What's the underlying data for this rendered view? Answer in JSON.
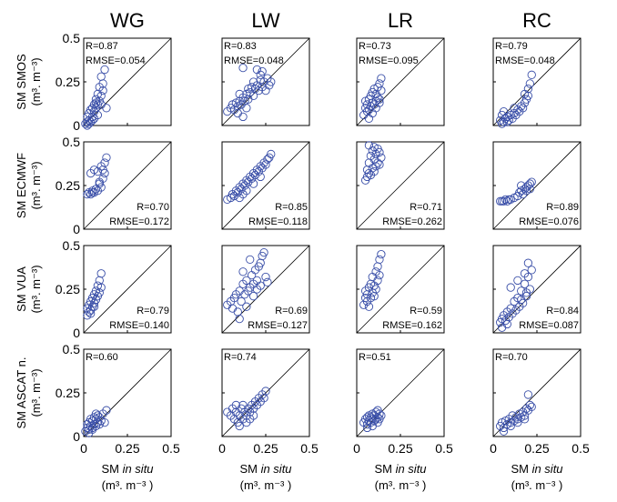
{
  "colors": {
    "marker": "#3a4fa8",
    "frame": "#000000",
    "background": "#ffffff"
  },
  "x_axis_label": {
    "prefix": "SM ",
    "italic": "in situ",
    "units": "(m³. m⁻³ )"
  },
  "chart_data": [
    {
      "type": "scatter",
      "column": "WG",
      "row": 0,
      "ylabel": "SM SMOS",
      "xlim": [
        0,
        0.5
      ],
      "ylim": [
        0,
        0.5
      ],
      "stats": [
        "R=0.87",
        "RMSE=0.054"
      ],
      "stats_pos": "top-left",
      "x": [
        0.01,
        0.02,
        0.02,
        0.03,
        0.03,
        0.04,
        0.04,
        0.05,
        0.05,
        0.06,
        0.06,
        0.07,
        0.07,
        0.08,
        0.08,
        0.09,
        0.09,
        0.1,
        0.1,
        0.11,
        0.12,
        0.13,
        0.02,
        0.03,
        0.05,
        0.06,
        0.08,
        0.1,
        0.11,
        0.07
      ],
      "y": [
        0.01,
        0.02,
        0.05,
        0.03,
        0.07,
        0.02,
        0.09,
        0.05,
        0.1,
        0.08,
        0.12,
        0.1,
        0.15,
        0.12,
        0.18,
        0.14,
        0.22,
        0.17,
        0.28,
        0.2,
        0.32,
        0.1,
        0.0,
        0.01,
        0.03,
        0.04,
        0.06,
        0.12,
        0.24,
        0.13
      ]
    },
    {
      "type": "scatter",
      "column": "LW",
      "row": 0,
      "ylabel": "SM SMOS",
      "xlim": [
        0,
        0.5
      ],
      "ylim": [
        0,
        0.5
      ],
      "stats": [
        "R=0.83",
        "RMSE=0.048"
      ],
      "stats_pos": "top-left",
      "x": [
        0.03,
        0.05,
        0.06,
        0.07,
        0.08,
        0.09,
        0.1,
        0.1,
        0.11,
        0.12,
        0.12,
        0.13,
        0.14,
        0.15,
        0.15,
        0.16,
        0.17,
        0.18,
        0.18,
        0.19,
        0.2,
        0.21,
        0.22,
        0.22,
        0.23,
        0.24,
        0.25,
        0.26,
        0.27,
        0.28,
        0.12,
        0.09,
        0.14,
        0.2,
        0.23
      ],
      "y": [
        0.08,
        0.1,
        0.12,
        0.09,
        0.13,
        0.11,
        0.14,
        0.18,
        0.12,
        0.16,
        0.33,
        0.14,
        0.18,
        0.15,
        0.21,
        0.19,
        0.22,
        0.17,
        0.25,
        0.21,
        0.23,
        0.2,
        0.26,
        0.29,
        0.22,
        0.25,
        0.2,
        0.27,
        0.23,
        0.25,
        0.05,
        0.07,
        0.1,
        0.32,
        0.31
      ]
    },
    {
      "type": "scatter",
      "column": "LR",
      "row": 0,
      "ylabel": "SM SMOS",
      "xlim": [
        0,
        0.5
      ],
      "ylim": [
        0,
        0.5
      ],
      "stats": [
        "R=0.73",
        "RMSE=0.095"
      ],
      "stats_pos": "top-left",
      "x": [
        0.04,
        0.05,
        0.05,
        0.06,
        0.06,
        0.07,
        0.07,
        0.08,
        0.08,
        0.09,
        0.09,
        0.1,
        0.1,
        0.11,
        0.11,
        0.12,
        0.12,
        0.13,
        0.13,
        0.14,
        0.14,
        0.07,
        0.09,
        0.11,
        0.13
      ],
      "y": [
        0.06,
        0.1,
        0.14,
        0.08,
        0.12,
        0.09,
        0.15,
        0.11,
        0.17,
        0.13,
        0.19,
        0.12,
        0.21,
        0.14,
        0.18,
        0.16,
        0.22,
        0.15,
        0.24,
        0.2,
        0.27,
        0.04,
        0.07,
        0.1,
        0.13
      ]
    },
    {
      "type": "scatter",
      "column": "RC",
      "row": 0,
      "ylabel": "SM SMOS",
      "xlim": [
        0,
        0.5
      ],
      "ylim": [
        0,
        0.5
      ],
      "stats": [
        "R=0.79",
        "RMSE=0.048"
      ],
      "stats_pos": "top-left",
      "x": [
        0.04,
        0.05,
        0.06,
        0.06,
        0.07,
        0.08,
        0.09,
        0.1,
        0.11,
        0.12,
        0.13,
        0.14,
        0.15,
        0.16,
        0.17,
        0.18,
        0.19,
        0.2,
        0.2,
        0.21,
        0.22,
        0.05,
        0.08,
        0.12,
        0.18
      ],
      "y": [
        0.03,
        0.06,
        0.02,
        0.08,
        0.04,
        0.05,
        0.03,
        0.06,
        0.04,
        0.07,
        0.06,
        0.09,
        0.08,
        0.11,
        0.1,
        0.13,
        0.15,
        0.17,
        0.21,
        0.24,
        0.29,
        0.01,
        0.02,
        0.1,
        0.18
      ]
    },
    {
      "type": "scatter",
      "column": "WG",
      "row": 1,
      "ylabel": "SM ECMWF",
      "xlim": [
        0,
        0.5
      ],
      "ylim": [
        0,
        0.5
      ],
      "stats": [
        "R=0.70",
        "RMSE=0.172"
      ],
      "stats_pos": "bottom-right",
      "x": [
        0.02,
        0.03,
        0.04,
        0.05,
        0.06,
        0.07,
        0.08,
        0.09,
        0.1,
        0.11,
        0.12,
        0.04,
        0.06,
        0.08,
        0.1,
        0.12,
        0.13,
        0.05,
        0.09,
        0.11
      ],
      "y": [
        0.2,
        0.21,
        0.2,
        0.22,
        0.21,
        0.23,
        0.22,
        0.26,
        0.24,
        0.29,
        0.32,
        0.32,
        0.34,
        0.33,
        0.36,
        0.38,
        0.41,
        0.21,
        0.27,
        0.34
      ]
    },
    {
      "type": "scatter",
      "column": "LW",
      "row": 1,
      "ylabel": "SM ECMWF",
      "xlim": [
        0,
        0.5
      ],
      "ylim": [
        0,
        0.5
      ],
      "stats": [
        "R=0.85",
        "RMSE=0.118"
      ],
      "stats_pos": "bottom-right",
      "x": [
        0.03,
        0.05,
        0.06,
        0.07,
        0.08,
        0.09,
        0.1,
        0.11,
        0.12,
        0.13,
        0.14,
        0.15,
        0.16,
        0.17,
        0.18,
        0.19,
        0.2,
        0.21,
        0.22,
        0.23,
        0.24,
        0.25,
        0.26,
        0.27,
        0.28,
        0.1,
        0.14,
        0.18,
        0.22,
        0.12
      ],
      "y": [
        0.17,
        0.18,
        0.2,
        0.19,
        0.22,
        0.21,
        0.24,
        0.23,
        0.26,
        0.25,
        0.28,
        0.27,
        0.3,
        0.29,
        0.32,
        0.31,
        0.34,
        0.33,
        0.36,
        0.35,
        0.38,
        0.37,
        0.4,
        0.41,
        0.43,
        0.18,
        0.22,
        0.26,
        0.3,
        0.2
      ]
    },
    {
      "type": "scatter",
      "column": "LR",
      "row": 1,
      "ylabel": "SM ECMWF",
      "xlim": [
        0,
        0.5
      ],
      "ylim": [
        0,
        0.5
      ],
      "stats": [
        "R=0.71",
        "RMSE=0.262"
      ],
      "stats_pos": "bottom-right",
      "x": [
        0.05,
        0.06,
        0.06,
        0.07,
        0.07,
        0.08,
        0.08,
        0.09,
        0.09,
        0.1,
        0.1,
        0.11,
        0.11,
        0.12,
        0.12,
        0.13,
        0.13,
        0.14,
        0.07,
        0.1
      ],
      "y": [
        0.28,
        0.3,
        0.34,
        0.32,
        0.38,
        0.31,
        0.42,
        0.35,
        0.45,
        0.33,
        0.4,
        0.36,
        0.43,
        0.38,
        0.46,
        0.37,
        0.44,
        0.41,
        0.48,
        0.47
      ]
    },
    {
      "type": "scatter",
      "column": "RC",
      "row": 1,
      "ylabel": "SM ECMWF",
      "xlim": [
        0,
        0.5
      ],
      "ylim": [
        0,
        0.5
      ],
      "stats": [
        "R=0.89",
        "RMSE=0.076"
      ],
      "stats_pos": "bottom-right",
      "x": [
        0.04,
        0.05,
        0.06,
        0.07,
        0.08,
        0.09,
        0.1,
        0.12,
        0.14,
        0.15,
        0.16,
        0.17,
        0.18,
        0.19,
        0.2,
        0.21,
        0.22,
        0.16,
        0.19,
        0.21
      ],
      "y": [
        0.16,
        0.16,
        0.16,
        0.17,
        0.16,
        0.17,
        0.17,
        0.18,
        0.19,
        0.21,
        0.22,
        0.2,
        0.23,
        0.24,
        0.25,
        0.26,
        0.27,
        0.25,
        0.22,
        0.23
      ]
    },
    {
      "type": "scatter",
      "column": "WG",
      "row": 2,
      "ylabel": "SM VUA",
      "xlim": [
        0,
        0.5
      ],
      "ylim": [
        0,
        0.5
      ],
      "stats": [
        "R=0.79",
        "RMSE=0.140"
      ],
      "stats_pos": "bottom-right",
      "x": [
        0.02,
        0.02,
        0.03,
        0.03,
        0.04,
        0.04,
        0.05,
        0.05,
        0.06,
        0.06,
        0.07,
        0.07,
        0.08,
        0.08,
        0.09,
        0.09,
        0.1,
        0.1,
        0.04,
        0.06
      ],
      "y": [
        0.1,
        0.14,
        0.12,
        0.16,
        0.13,
        0.18,
        0.15,
        0.2,
        0.17,
        0.22,
        0.19,
        0.24,
        0.21,
        0.27,
        0.23,
        0.3,
        0.26,
        0.34,
        0.11,
        0.15
      ]
    },
    {
      "type": "scatter",
      "column": "LW",
      "row": 2,
      "ylabel": "SM VUA",
      "xlim": [
        0,
        0.5
      ],
      "ylim": [
        0,
        0.5
      ],
      "stats": [
        "R=0.69",
        "RMSE=0.127"
      ],
      "stats_pos": "bottom-right",
      "x": [
        0.03,
        0.05,
        0.06,
        0.07,
        0.08,
        0.09,
        0.1,
        0.11,
        0.12,
        0.13,
        0.14,
        0.15,
        0.16,
        0.17,
        0.18,
        0.19,
        0.2,
        0.21,
        0.22,
        0.23,
        0.24,
        0.25,
        0.26,
        0.1,
        0.14,
        0.18,
        0.22,
        0.12,
        0.16,
        0.2
      ],
      "y": [
        0.16,
        0.18,
        0.14,
        0.2,
        0.22,
        0.12,
        0.24,
        0.18,
        0.28,
        0.22,
        0.3,
        0.24,
        0.26,
        0.33,
        0.28,
        0.36,
        0.3,
        0.38,
        0.4,
        0.44,
        0.46,
        0.32,
        0.29,
        0.08,
        0.15,
        0.21,
        0.27,
        0.35,
        0.42,
        0.25
      ]
    },
    {
      "type": "scatter",
      "column": "LR",
      "row": 2,
      "ylabel": "SM VUA",
      "xlim": [
        0,
        0.5
      ],
      "ylim": [
        0,
        0.5
      ],
      "stats": [
        "R=0.59",
        "RMSE=0.162"
      ],
      "stats_pos": "bottom-right",
      "x": [
        0.04,
        0.05,
        0.05,
        0.06,
        0.06,
        0.07,
        0.07,
        0.08,
        0.08,
        0.09,
        0.09,
        0.1,
        0.1,
        0.11,
        0.11,
        0.12,
        0.12,
        0.13,
        0.13,
        0.14
      ],
      "y": [
        0.16,
        0.2,
        0.24,
        0.18,
        0.22,
        0.15,
        0.26,
        0.2,
        0.28,
        0.23,
        0.32,
        0.21,
        0.27,
        0.25,
        0.35,
        0.3,
        0.38,
        0.33,
        0.42,
        0.45
      ]
    },
    {
      "type": "scatter",
      "column": "RC",
      "row": 2,
      "ylabel": "SM VUA",
      "xlim": [
        0,
        0.5
      ],
      "ylim": [
        0,
        0.5
      ],
      "stats": [
        "R=0.84",
        "RMSE=0.087"
      ],
      "stats_pos": "bottom-right",
      "x": [
        0.04,
        0.05,
        0.06,
        0.07,
        0.08,
        0.09,
        0.1,
        0.11,
        0.12,
        0.13,
        0.14,
        0.15,
        0.16,
        0.17,
        0.18,
        0.19,
        0.2,
        0.21,
        0.22,
        0.1,
        0.14,
        0.18,
        0.2,
        0.05,
        0.08,
        0.16,
        0.19
      ],
      "y": [
        0.06,
        0.08,
        0.1,
        0.07,
        0.12,
        0.09,
        0.14,
        0.11,
        0.18,
        0.13,
        0.2,
        0.15,
        0.24,
        0.17,
        0.28,
        0.21,
        0.32,
        0.25,
        0.36,
        0.26,
        0.3,
        0.34,
        0.4,
        0.03,
        0.05,
        0.19,
        0.23
      ]
    },
    {
      "type": "scatter",
      "column": "WG",
      "row": 3,
      "ylabel": "SM ASCAT n.",
      "xlim": [
        0,
        0.5
      ],
      "ylim": [
        0,
        0.5
      ],
      "stats": [
        "R=0.60"
      ],
      "stats_pos": "top-left",
      "x": [
        0.01,
        0.02,
        0.02,
        0.03,
        0.03,
        0.04,
        0.04,
        0.05,
        0.05,
        0.06,
        0.06,
        0.07,
        0.07,
        0.08,
        0.08,
        0.09,
        0.09,
        0.1,
        0.11,
        0.12,
        0.13,
        0.03,
        0.05,
        0.07
      ],
      "y": [
        0.03,
        0.05,
        0.07,
        0.04,
        0.08,
        0.06,
        0.1,
        0.05,
        0.09,
        0.07,
        0.11,
        0.06,
        0.1,
        0.08,
        0.12,
        0.07,
        0.11,
        0.09,
        0.13,
        0.08,
        0.15,
        0.02,
        0.04,
        0.13
      ]
    },
    {
      "type": "scatter",
      "column": "LW",
      "row": 3,
      "ylabel": "SM ASCAT n.",
      "xlim": [
        0,
        0.5
      ],
      "ylim": [
        0,
        0.5
      ],
      "stats": [
        "R=0.74"
      ],
      "stats_pos": "top-left",
      "x": [
        0.03,
        0.05,
        0.06,
        0.07,
        0.08,
        0.09,
        0.1,
        0.11,
        0.12,
        0.13,
        0.14,
        0.15,
        0.16,
        0.17,
        0.18,
        0.19,
        0.2,
        0.21,
        0.22,
        0.23,
        0.24,
        0.25,
        0.1,
        0.14,
        0.18,
        0.08,
        0.12,
        0.16
      ],
      "y": [
        0.14,
        0.12,
        0.16,
        0.1,
        0.14,
        0.08,
        0.12,
        0.16,
        0.1,
        0.14,
        0.12,
        0.16,
        0.14,
        0.18,
        0.16,
        0.2,
        0.18,
        0.22,
        0.2,
        0.24,
        0.22,
        0.26,
        0.06,
        0.08,
        0.12,
        0.18,
        0.18,
        0.1
      ]
    },
    {
      "type": "scatter",
      "column": "LR",
      "row": 3,
      "ylabel": "SM ASCAT n.",
      "xlim": [
        0,
        0.5
      ],
      "ylim": [
        0,
        0.5
      ],
      "stats": [
        "R=0.51"
      ],
      "stats_pos": "top-left",
      "x": [
        0.04,
        0.05,
        0.06,
        0.06,
        0.07,
        0.07,
        0.08,
        0.08,
        0.09,
        0.09,
        0.1,
        0.1,
        0.11,
        0.11,
        0.12,
        0.12,
        0.13,
        0.13,
        0.14,
        0.06,
        0.09,
        0.12
      ],
      "y": [
        0.08,
        0.1,
        0.07,
        0.11,
        0.09,
        0.12,
        0.08,
        0.11,
        0.1,
        0.13,
        0.09,
        0.12,
        0.1,
        0.14,
        0.08,
        0.11,
        0.1,
        0.13,
        0.12,
        0.05,
        0.06,
        0.15
      ]
    },
    {
      "type": "scatter",
      "column": "RC",
      "row": 3,
      "ylabel": "SM ASCAT n.",
      "xlim": [
        0,
        0.5
      ],
      "ylim": [
        0,
        0.5
      ],
      "stats": [
        "R=0.70"
      ],
      "stats_pos": "top-left",
      "x": [
        0.04,
        0.05,
        0.06,
        0.07,
        0.08,
        0.09,
        0.1,
        0.11,
        0.12,
        0.13,
        0.14,
        0.15,
        0.16,
        0.17,
        0.18,
        0.19,
        0.2,
        0.21,
        0.22,
        0.06,
        0.1,
        0.14,
        0.18,
        0.2
      ],
      "y": [
        0.06,
        0.08,
        0.05,
        0.09,
        0.07,
        0.1,
        0.08,
        0.12,
        0.09,
        0.11,
        0.1,
        0.13,
        0.11,
        0.14,
        0.12,
        0.16,
        0.15,
        0.18,
        0.17,
        0.03,
        0.06,
        0.08,
        0.1,
        0.24
      ]
    }
  ],
  "axis_ticks": [
    "0",
    "0.25",
    "0.5"
  ]
}
